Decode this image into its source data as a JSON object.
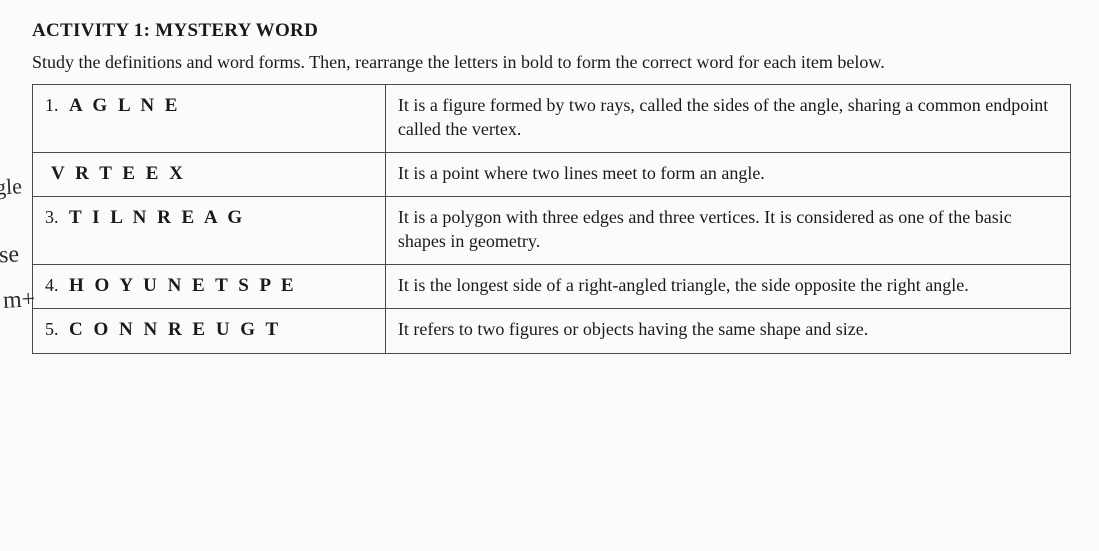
{
  "title": "ACTIVITY 1: MYSTERY WORD",
  "instructions": "Study the definitions and word forms. Then, rearrange the letters in bold to form the correct word for each item below.",
  "rows": [
    {
      "num": "1.",
      "scramble": "A G L N E",
      "def": "It is a figure formed by two rays, called the sides of the angle, sharing a common endpoint called the vertex.",
      "hand": ""
    },
    {
      "num": "",
      "scramble": "V R T E E X",
      "def": "It is a point where two lines meet to form an angle.",
      "hand": "gle"
    },
    {
      "num": "3.",
      "scramble": "T I L N R E A G",
      "def": "It is a polygon with three edges and three vertices. It is considered as one of the basic shapes in geometry.",
      "hand": "se"
    },
    {
      "num": "4.",
      "scramble": "H O Y U N E T S P E",
      "def": "It is the longest side of a right-angled triangle, the side opposite the right angle.",
      "hand": "m+"
    },
    {
      "num": "5.",
      "scramble": "C O N N R E U G T",
      "def": "It refers to two figures or objects having the same shape and size.",
      "hand": ""
    }
  ],
  "handwriting": {
    "gle_class": "hand-gle",
    "se_class": "hand-se",
    "mt_class": "hand-mt"
  }
}
